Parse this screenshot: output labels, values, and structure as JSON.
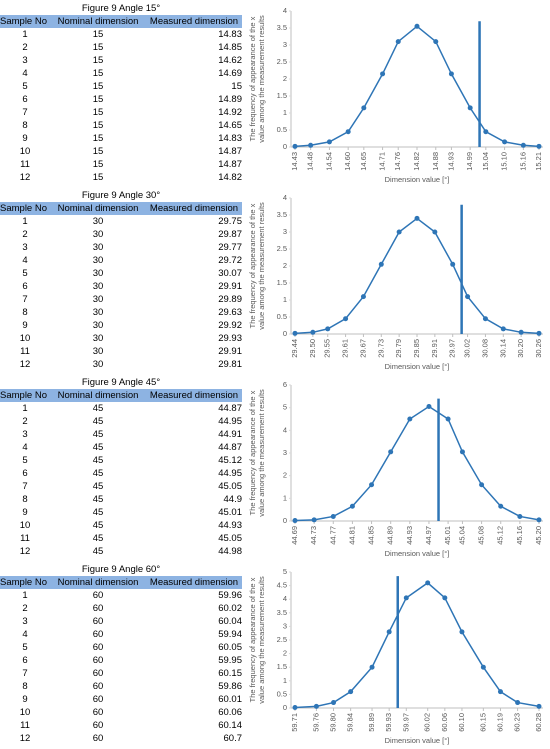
{
  "tables": [
    {
      "title": "Figure 9 Angle 15°",
      "header": [
        "Sample No",
        "Nominal dimension",
        "Measured dimension"
      ],
      "rows": [
        [
          1,
          15,
          14.83
        ],
        [
          2,
          15,
          14.85
        ],
        [
          3,
          15,
          14.62
        ],
        [
          4,
          15,
          14.69
        ],
        [
          5,
          15,
          15
        ],
        [
          6,
          15,
          14.89
        ],
        [
          7,
          15,
          14.92
        ],
        [
          8,
          15,
          14.65
        ],
        [
          9,
          15,
          14.83
        ],
        [
          10,
          15,
          14.87
        ],
        [
          11,
          15,
          14.87
        ],
        [
          12,
          15,
          14.82
        ]
      ]
    },
    {
      "title": "Figure 9 Angle 30°",
      "header": [
        "Sample No",
        "Nominal dimension",
        "Measured dimension"
      ],
      "rows": [
        [
          1,
          30,
          29.75
        ],
        [
          2,
          30,
          29.87
        ],
        [
          3,
          30,
          29.77
        ],
        [
          4,
          30,
          29.72
        ],
        [
          5,
          30,
          30.07
        ],
        [
          6,
          30,
          29.91
        ],
        [
          7,
          30,
          29.89
        ],
        [
          8,
          30,
          29.63
        ],
        [
          9,
          30,
          29.92
        ],
        [
          10,
          30,
          29.93
        ],
        [
          11,
          30,
          29.91
        ],
        [
          12,
          30,
          29.81
        ]
      ]
    },
    {
      "title": "Figure 9 Angle 45°",
      "header": [
        "Sample No",
        "Nominal dimension",
        "Measured dimension"
      ],
      "rows": [
        [
          1,
          45,
          44.87
        ],
        [
          2,
          45,
          44.95
        ],
        [
          3,
          45,
          44.91
        ],
        [
          4,
          45,
          44.87
        ],
        [
          5,
          45,
          45.12
        ],
        [
          6,
          45,
          44.95
        ],
        [
          7,
          45,
          45.05
        ],
        [
          8,
          45,
          44.9
        ],
        [
          9,
          45,
          45.01
        ],
        [
          10,
          45,
          44.93
        ],
        [
          11,
          45,
          45.05
        ],
        [
          12,
          45,
          44.98
        ]
      ]
    },
    {
      "title": "Figure 9 Angle 60°",
      "header": [
        "Sample No",
        "Nominal dimension",
        "Measured dimension"
      ],
      "rows": [
        [
          1,
          60,
          59.96
        ],
        [
          2,
          60,
          60.02
        ],
        [
          3,
          60,
          60.04
        ],
        [
          4,
          60,
          59.94
        ],
        [
          5,
          60,
          60.05
        ],
        [
          6,
          60,
          59.95
        ],
        [
          7,
          60,
          60.15
        ],
        [
          8,
          60,
          59.86
        ],
        [
          9,
          60,
          60.01
        ],
        [
          10,
          60,
          60.06
        ],
        [
          11,
          60,
          60.14
        ],
        [
          12,
          60,
          60.7
        ]
      ]
    }
  ],
  "chart_data": [
    {
      "type": "line",
      "x_label": "Dimension value [°]",
      "y_label": [
        "The frequency of appearance of the x",
        "value among the measurement results"
      ],
      "color": "#2e75b6",
      "grid": false,
      "x": [
        14.43,
        14.48,
        14.54,
        14.6,
        14.65,
        14.71,
        14.76,
        14.82,
        14.88,
        14.93,
        14.99,
        15.04,
        15.1,
        15.16,
        15.21
      ],
      "values": [
        0.02,
        0.05,
        0.15,
        0.45,
        1.15,
        2.15,
        3.1,
        3.55,
        3.1,
        2.15,
        1.15,
        0.45,
        0.15,
        0.05,
        0.02
      ],
      "xlim": [
        14.43,
        15.21
      ],
      "xticks": [
        14.43,
        14.48,
        14.54,
        {
          "value": 14.6,
          "label": "14.60"
        },
        14.65,
        14.71,
        14.76,
        14.82,
        14.88,
        14.93,
        14.99,
        15.04,
        {
          "value": 15.1,
          "label": "15.10"
        },
        15.16,
        15.21
      ],
      "ylim": [
        0,
        4
      ],
      "yticks": [
        0,
        0.5,
        1,
        1.5,
        2,
        2.5,
        3,
        3.5,
        4
      ],
      "reference_line": {
        "x": 15.02,
        "y": 3.7
      }
    },
    {
      "type": "line",
      "x_label": "Dimension value [°]",
      "y_label": [
        "The frequency of appearance of the x",
        "value among the measurement results"
      ],
      "color": "#2e75b6",
      "grid": false,
      "x": [
        29.44,
        29.5,
        29.55,
        29.61,
        29.67,
        29.73,
        29.79,
        29.85,
        29.91,
        29.97,
        30.02,
        30.08,
        30.14,
        30.2,
        30.26
      ],
      "values": [
        0.02,
        0.05,
        0.15,
        0.45,
        1.1,
        2.05,
        3.0,
        3.4,
        3.0,
        2.05,
        1.1,
        0.45,
        0.15,
        0.05,
        0.02
      ],
      "xlim": [
        29.44,
        30.26
      ],
      "xticks": [
        29.44,
        {
          "value": 29.5,
          "label": "29.50"
        },
        29.55,
        29.61,
        29.67,
        29.73,
        29.79,
        29.85,
        29.91,
        29.97,
        30.02,
        30.08,
        30.14,
        {
          "value": 30.2,
          "label": "30.20"
        },
        30.26
      ],
      "ylim": [
        0,
        4
      ],
      "yticks": [
        0,
        0.5,
        1,
        1.5,
        2,
        2.5,
        3,
        3.5,
        4
      ],
      "reference_line": {
        "x": 30.0,
        "y": 3.8
      }
    },
    {
      "type": "line",
      "x_label": "Dimension value [°]",
      "y_label": [
        "The frequency of appearance of the x",
        "value among the measurement results"
      ],
      "color": "#2e75b6",
      "grid": false,
      "x": [
        44.69,
        44.73,
        44.77,
        44.81,
        44.85,
        44.89,
        44.93,
        44.97,
        45.01,
        45.04,
        45.08,
        45.12,
        45.16,
        45.2
      ],
      "values": [
        0.02,
        0.05,
        0.2,
        0.65,
        1.6,
        3.05,
        4.5,
        5.05,
        4.5,
        3.05,
        1.6,
        0.65,
        0.2,
        0.05
      ],
      "xlim": [
        44.69,
        45.2
      ],
      "xticks": [
        44.69,
        44.73,
        44.77,
        44.81,
        44.85,
        44.89,
        44.93,
        44.97,
        45.01,
        45.04,
        45.08,
        45.12,
        45.16,
        {
          "value": 45.2,
          "label": "45.20"
        }
      ],
      "ylim": [
        0,
        6
      ],
      "yticks": [
        0,
        1,
        2,
        3,
        4,
        5,
        6
      ],
      "reference_line": {
        "x": 44.99,
        "y": 5.4
      }
    },
    {
      "type": "line",
      "x_label": "Dimension value [°]",
      "y_label": [
        "The frequency of appearance of the x",
        "value among the measurement results"
      ],
      "color": "#2e75b6",
      "grid": false,
      "x": [
        59.71,
        59.76,
        59.8,
        59.84,
        59.89,
        59.93,
        59.97,
        60.02,
        60.06,
        60.1,
        60.15,
        60.19,
        60.23,
        60.28
      ],
      "values": [
        0.02,
        0.06,
        0.2,
        0.6,
        1.5,
        2.8,
        4.05,
        4.6,
        4.05,
        2.8,
        1.5,
        0.6,
        0.2,
        0.06
      ],
      "xlim": [
        59.71,
        60.28
      ],
      "xticks": [
        59.71,
        59.76,
        {
          "value": 59.8,
          "label": "59.80"
        },
        59.84,
        59.89,
        59.93,
        59.97,
        60.02,
        60.06,
        {
          "value": 60.1,
          "label": "60.10"
        },
        60.15,
        60.19,
        60.23,
        60.28
      ],
      "ylim": [
        0,
        5
      ],
      "yticks": [
        0,
        0.5,
        1,
        1.5,
        2,
        2.5,
        3,
        3.5,
        4,
        4.5,
        5
      ],
      "reference_line": {
        "x": 59.95,
        "y": 4.85
      }
    }
  ]
}
